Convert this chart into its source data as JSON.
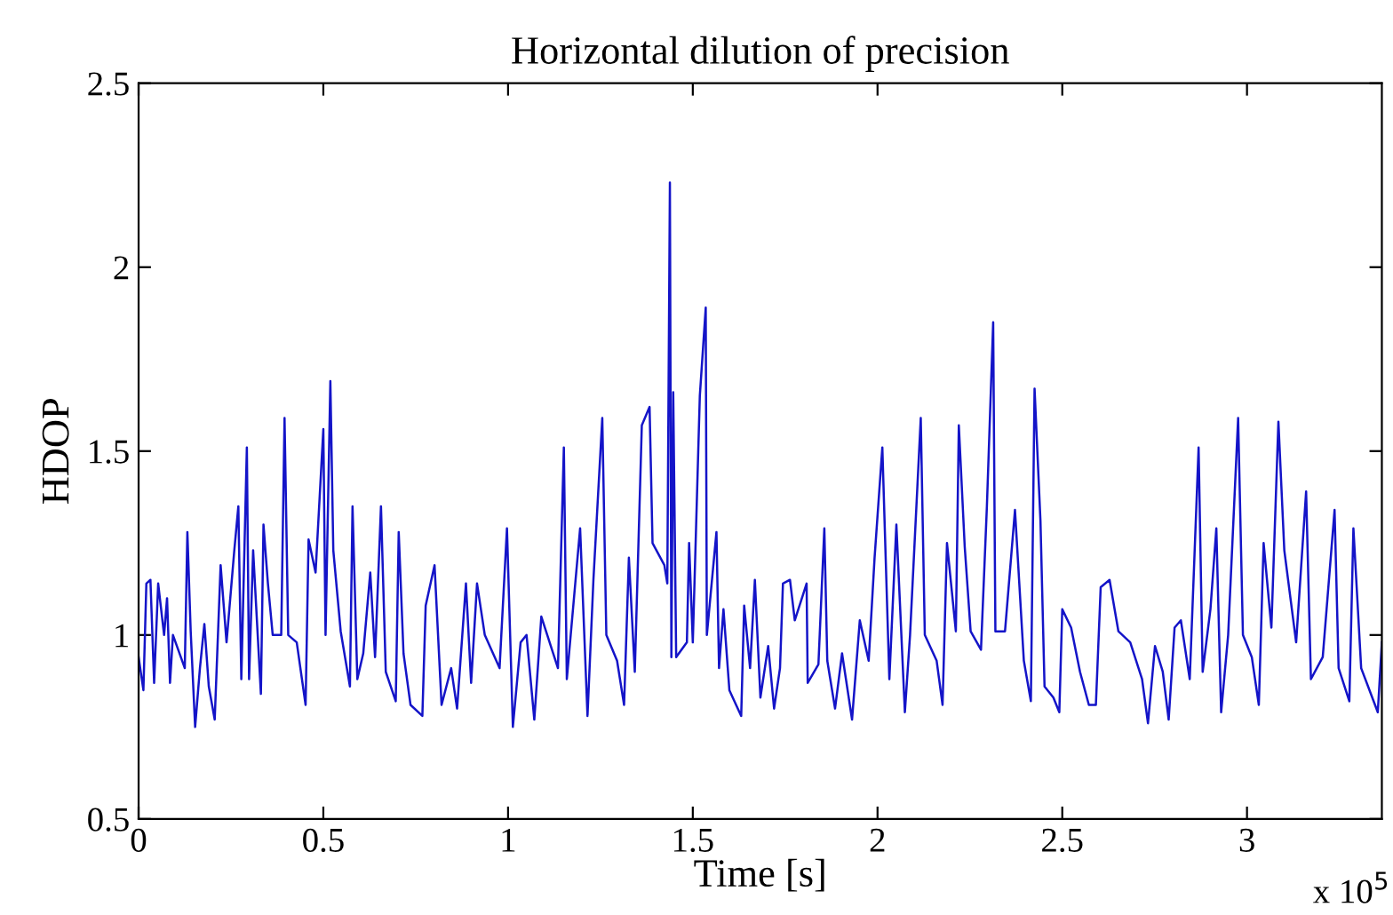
{
  "chart_data": {
    "type": "line",
    "title": "Horizontal dilution of precision",
    "xlabel": "Time [s]",
    "ylabel": "HDOP",
    "annotations": [
      "x 10$^{5}$"
    ],
    "xlim": [
      0,
      3.365
    ],
    "ylim": [
      0.5,
      2.5
    ],
    "xticks": [
      0,
      0.5,
      1,
      1.5,
      2,
      2.5,
      3
    ],
    "yticks": [
      0.5,
      1,
      1.5,
      2,
      2.5
    ],
    "grid": false,
    "series": [
      {
        "color": "#1414c8",
        "x": [
          0,
          0.013,
          0.021,
          0.032,
          0.042,
          0.053,
          0.069,
          0.077,
          0.085,
          0.093,
          0.125,
          0.132,
          0.141,
          0.153,
          0.166,
          0.178,
          0.19,
          0.206,
          0.222,
          0.238,
          0.259,
          0.27,
          0.278,
          0.293,
          0.299,
          0.31,
          0.331,
          0.338,
          0.35,
          0.363,
          0.386,
          0.395,
          0.405,
          0.428,
          0.452,
          0.46,
          0.479,
          0.5,
          0.506,
          0.519,
          0.527,
          0.547,
          0.572,
          0.579,
          0.592,
          0.608,
          0.627,
          0.64,
          0.656,
          0.669,
          0.696,
          0.704,
          0.717,
          0.736,
          0.768,
          0.777,
          0.801,
          0.82,
          0.846,
          0.862,
          0.886,
          0.9,
          0.916,
          0.937,
          0.977,
          0.997,
          1.013,
          1.034,
          1.05,
          1.071,
          1.09,
          1.135,
          1.151,
          1.159,
          1.195,
          1.215,
          1.231,
          1.255,
          1.266,
          1.295,
          1.314,
          1.327,
          1.343,
          1.362,
          1.383,
          1.391,
          1.423,
          1.431,
          1.438,
          1.442,
          1.447,
          1.455,
          1.484,
          1.49,
          1.5,
          1.519,
          1.535,
          1.538,
          1.564,
          1.571,
          1.583,
          1.599,
          1.631,
          1.639,
          1.655,
          1.668,
          1.683,
          1.704,
          1.72,
          1.736,
          1.744,
          1.763,
          1.776,
          1.808,
          1.811,
          1.84,
          1.856,
          1.864,
          1.885,
          1.904,
          1.931,
          1.952,
          1.976,
          1.992,
          2.013,
          2.032,
          2.051,
          2.074,
          2.088,
          2.117,
          2.128,
          2.16,
          2.176,
          2.188,
          2.212,
          2.22,
          2.236,
          2.252,
          2.28,
          2.296,
          2.313,
          2.319,
          2.345,
          2.372,
          2.396,
          2.415,
          2.425,
          2.441,
          2.452,
          2.476,
          2.492,
          2.5,
          2.524,
          2.548,
          2.572,
          2.591,
          2.604,
          2.628,
          2.652,
          2.684,
          2.716,
          2.732,
          2.751,
          2.772,
          2.788,
          2.804,
          2.821,
          2.845,
          2.858,
          2.869,
          2.88,
          2.901,
          2.917,
          2.93,
          2.949,
          2.976,
          2.989,
          3.013,
          3.032,
          3.045,
          3.066,
          3.085,
          3.101,
          3.133,
          3.16,
          3.173,
          3.205,
          3.237,
          3.248,
          3.277,
          3.288,
          3.309,
          3.354,
          3.365
        ],
        "values": [
          0.94,
          0.85,
          1.14,
          1.15,
          0.87,
          1.14,
          1.0,
          1.1,
          0.87,
          1.0,
          0.91,
          1.28,
          1.01,
          0.75,
          0.91,
          1.03,
          0.86,
          0.77,
          1.19,
          0.98,
          1.23,
          1.35,
          0.88,
          1.51,
          0.88,
          1.23,
          0.84,
          1.3,
          1.14,
          1.0,
          1.0,
          1.59,
          1.0,
          0.98,
          0.81,
          1.26,
          1.17,
          1.56,
          1.0,
          1.69,
          1.23,
          1.01,
          0.86,
          1.35,
          0.88,
          0.95,
          1.17,
          0.94,
          1.35,
          0.9,
          0.82,
          1.28,
          0.95,
          0.81,
          0.78,
          1.08,
          1.19,
          0.81,
          0.91,
          0.8,
          1.14,
          0.87,
          1.14,
          1.0,
          0.91,
          1.29,
          0.75,
          0.98,
          1.0,
          0.77,
          1.05,
          0.91,
          1.51,
          0.88,
          1.29,
          0.78,
          1.15,
          1.59,
          1.0,
          0.93,
          0.81,
          1.21,
          0.9,
          1.57,
          1.62,
          1.25,
          1.19,
          1.14,
          2.23,
          0.94,
          1.66,
          0.94,
          0.98,
          1.25,
          0.98,
          1.65,
          1.89,
          1.0,
          1.28,
          0.91,
          1.07,
          0.85,
          0.78,
          1.08,
          0.91,
          1.15,
          0.83,
          0.97,
          0.8,
          0.91,
          1.14,
          1.15,
          1.04,
          1.14,
          0.87,
          0.92,
          1.29,
          0.93,
          0.8,
          0.95,
          0.77,
          1.04,
          0.93,
          1.21,
          1.51,
          0.88,
          1.3,
          0.79,
          1.0,
          1.59,
          1.0,
          0.93,
          0.81,
          1.25,
          1.01,
          1.57,
          1.24,
          1.01,
          0.96,
          1.35,
          1.85,
          1.01,
          1.01,
          1.34,
          0.93,
          0.82,
          1.67,
          1.31,
          0.86,
          0.83,
          0.79,
          1.07,
          1.02,
          0.9,
          0.81,
          0.81,
          1.13,
          1.15,
          1.01,
          0.98,
          0.88,
          0.76,
          0.97,
          0.9,
          0.77,
          1.02,
          1.04,
          0.88,
          1.22,
          1.51,
          0.9,
          1.07,
          1.29,
          0.79,
          1.0,
          1.59,
          1.0,
          0.94,
          0.81,
          1.25,
          1.02,
          1.58,
          1.23,
          0.98,
          1.39,
          0.88,
          0.94,
          1.34,
          0.91,
          0.82,
          1.29,
          0.91,
          0.79,
          0.98
        ]
      }
    ]
  }
}
